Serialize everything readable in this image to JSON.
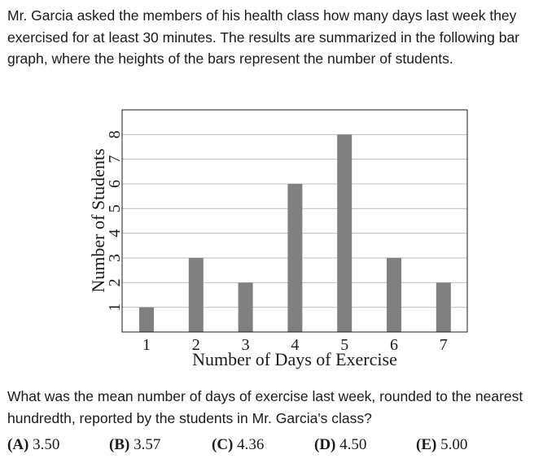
{
  "problem": {
    "intro": "Mr. Garcia asked the members of his health class how many days last week they exercised for at least 30 minutes. The results are summarized in the following bar graph, where the heights of the bars represent the number of students."
  },
  "chart_data": {
    "type": "bar",
    "categories": [
      "1",
      "2",
      "3",
      "4",
      "5",
      "6",
      "7"
    ],
    "values": [
      1,
      3,
      2,
      6,
      8,
      3,
      2
    ],
    "xlabel": "Number of Days of Exercise",
    "ylabel": "Number of Students",
    "yticks": [
      "1",
      "2",
      "3",
      "4",
      "5",
      "6",
      "7",
      "8"
    ],
    "ylim": [
      0,
      9
    ],
    "grid": true,
    "bar_color": "#808080"
  },
  "question": {
    "text": "What was the mean number of days of exercise last week, rounded to the nearest hundredth, reported by the students in Mr. Garcia's class?"
  },
  "choices": [
    {
      "letter": "(A)",
      "value": "3.50"
    },
    {
      "letter": "(B)",
      "value": "3.57"
    },
    {
      "letter": "(C)",
      "value": "4.36"
    },
    {
      "letter": "(D)",
      "value": "4.50"
    },
    {
      "letter": "(E)",
      "value": "5.00"
    }
  ]
}
